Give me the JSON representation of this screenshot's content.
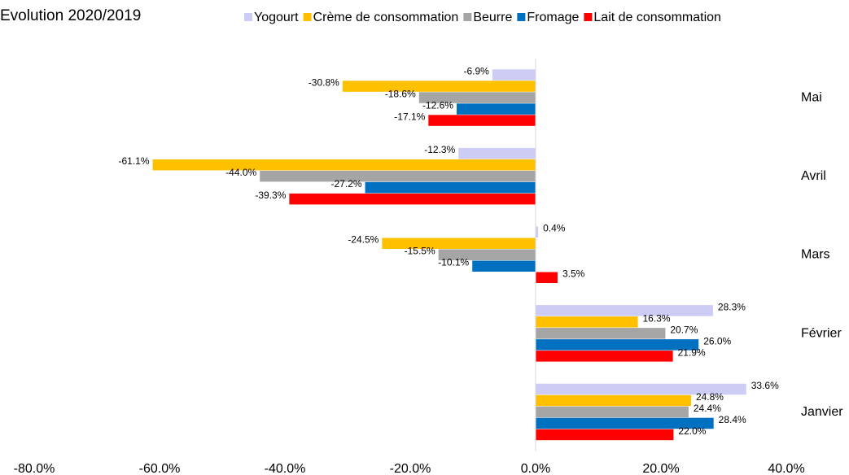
{
  "chart_data": {
    "type": "hbar",
    "title": "Evolution 2020/2019",
    "categories": [
      "Mai",
      "Avril",
      "Mars",
      "Février",
      "Janvier"
    ],
    "series": [
      {
        "name": "Yogourt",
        "color": "#ccccf5",
        "values": [
          -6.9,
          -12.3,
          0.4,
          28.3,
          33.6
        ],
        "value_labels": [
          "-6.9%",
          "-12.3%",
          "0.4%",
          "28.3%",
          "33.6%"
        ]
      },
      {
        "name": "Crème de consommation",
        "color": "#ffc000",
        "values": [
          -30.8,
          -61.1,
          -24.5,
          16.3,
          24.8
        ],
        "value_labels": [
          "-30.8%",
          "-61.1%",
          "-24.5%",
          "16.3%",
          "24.8%"
        ]
      },
      {
        "name": "Beurre",
        "color": "#a5a5a5",
        "values": [
          -18.6,
          -44.0,
          -15.5,
          20.7,
          24.4
        ],
        "value_labels": [
          "-18.6%",
          "-44.0%",
          "-15.5%",
          "20.7%",
          "24.4%"
        ]
      },
      {
        "name": "Fromage",
        "color": "#0070c0",
        "values": [
          -12.6,
          -27.2,
          -10.1,
          26.0,
          28.4
        ],
        "value_labels": [
          "-12.6%",
          "-27.2%",
          "-10.1%",
          "26.0%",
          "28.4%"
        ]
      },
      {
        "name": "Lait de consommation",
        "color": "#ff0000",
        "values": [
          -17.1,
          -39.3,
          3.5,
          21.9,
          22.0
        ],
        "value_labels": [
          "-17.1%",
          "-39.3%",
          "3.5%",
          "21.9%",
          "22.0%"
        ]
      }
    ],
    "xlim": [
      -80,
      40
    ],
    "xticks": [
      {
        "value": -80,
        "label": "-80.0%"
      },
      {
        "value": -60,
        "label": "-60.0%"
      },
      {
        "value": -40,
        "label": "-40.0%"
      },
      {
        "value": -20,
        "label": "-20.0%"
      },
      {
        "value": 0,
        "label": "0.0%"
      },
      {
        "value": 20,
        "label": "20.0%"
      },
      {
        "value": 40,
        "label": "40.0%"
      }
    ],
    "legend": "top"
  }
}
